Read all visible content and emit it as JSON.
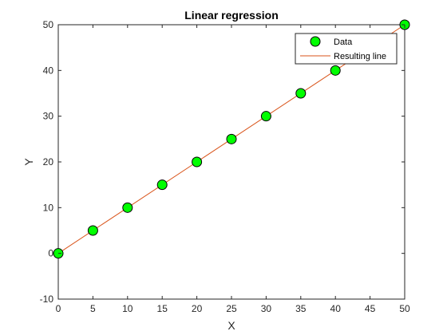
{
  "chart_data": {
    "type": "scatter",
    "title": "Linear regression",
    "xlabel": "X",
    "ylabel": "Y",
    "xlim": [
      0,
      50
    ],
    "ylim": [
      -10,
      50
    ],
    "xticks": [
      0,
      5,
      10,
      15,
      20,
      25,
      30,
      35,
      40,
      45,
      50
    ],
    "yticks": [
      -10,
      0,
      10,
      20,
      30,
      40,
      50
    ],
    "grid": false,
    "legend_position": "top-right",
    "series": [
      {
        "name": "Data",
        "kind": "scatter",
        "marker": "circle",
        "color": "#00ff00",
        "edge_color": "#000000",
        "x": [
          0,
          5,
          10,
          15,
          20,
          25,
          30,
          35,
          40,
          50
        ],
        "y": [
          0,
          5,
          10,
          15,
          20,
          25,
          30,
          35,
          40,
          50
        ]
      },
      {
        "name": "Resulting line",
        "kind": "line",
        "color": "#d95319",
        "x": [
          0,
          50
        ],
        "y": [
          0,
          50
        ]
      }
    ]
  }
}
